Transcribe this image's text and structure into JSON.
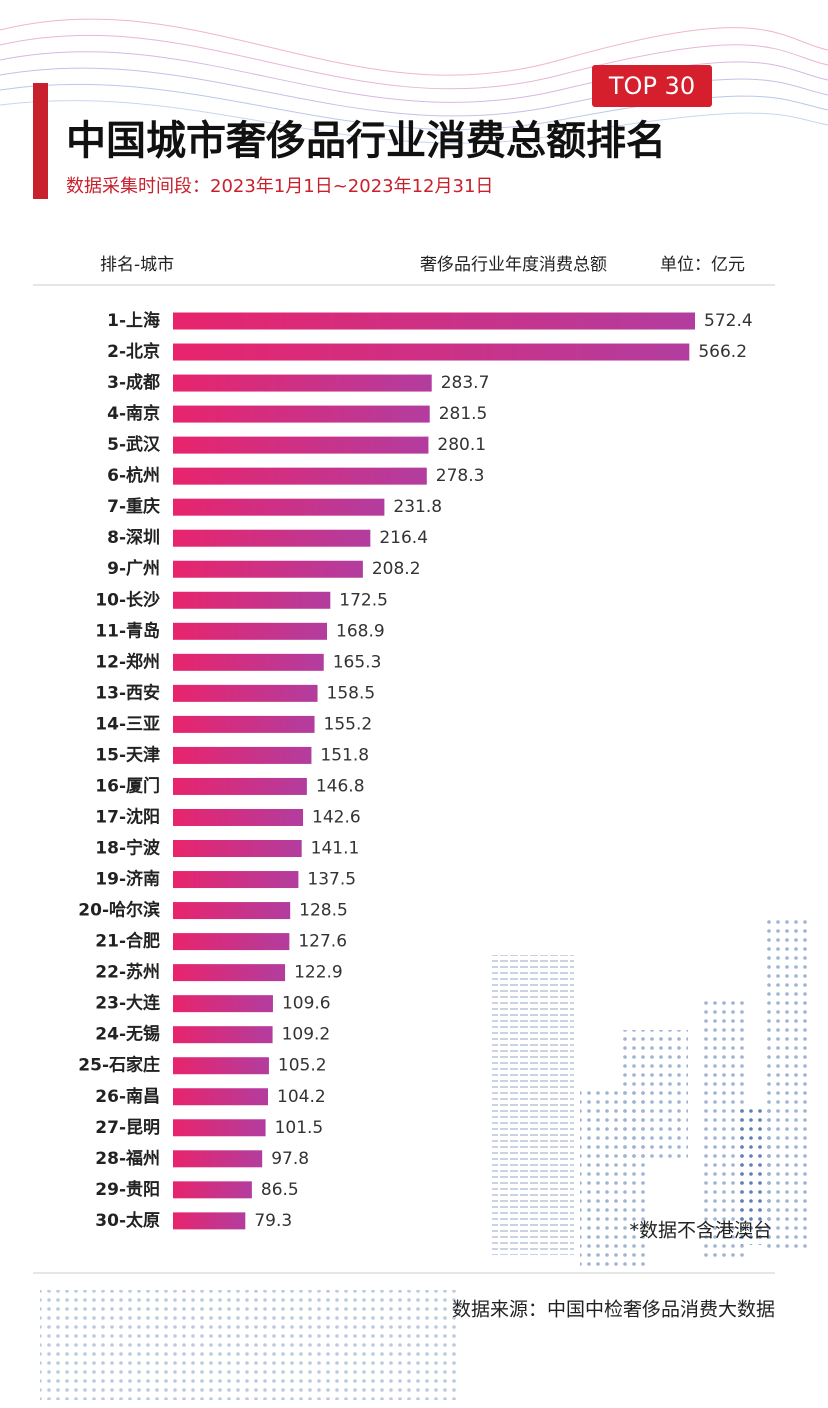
{
  "chart_data": {
    "type": "bar",
    "orientation": "horizontal",
    "badge": "TOP 30",
    "title": "中国城市奢侈品行业消费总额排名",
    "subtitle": "数据采集时间段：2023年1月1日~2023年12月31日",
    "category_header": "排名-城市",
    "value_header": "奢侈品行业年度消费总额",
    "unit": "单位：亿元",
    "categories": [
      "1-上海",
      "2-北京",
      "3-成都",
      "4-南京",
      "5-武汉",
      "6-杭州",
      "7-重庆",
      "8-深圳",
      "9-广州",
      "10-长沙",
      "11-青岛",
      "12-郑州",
      "13-西安",
      "14-三亚",
      "15-天津",
      "16-厦门",
      "17-沈阳",
      "18-宁波",
      "19-济南",
      "20-哈尔滨",
      "21-合肥",
      "22-苏州",
      "23-大连",
      "24-无锡",
      "25-石家庄",
      "26-南昌",
      "27-昆明",
      "28-福州",
      "29-贵阳",
      "30-太原"
    ],
    "values": [
      572.4,
      566.2,
      283.7,
      281.5,
      280.1,
      278.3,
      231.8,
      216.4,
      208.2,
      172.5,
      168.9,
      165.3,
      158.5,
      155.2,
      151.8,
      146.8,
      142.6,
      141.1,
      137.5,
      128.5,
      127.6,
      122.9,
      109.6,
      109.2,
      105.2,
      104.2,
      101.5,
      97.8,
      86.5,
      79.3
    ],
    "color_start": "#e8246c",
    "color_end": "#b23d9f",
    "note": "*数据不含港澳台",
    "source": "数据来源：中国中检奢侈品消费大数据"
  }
}
